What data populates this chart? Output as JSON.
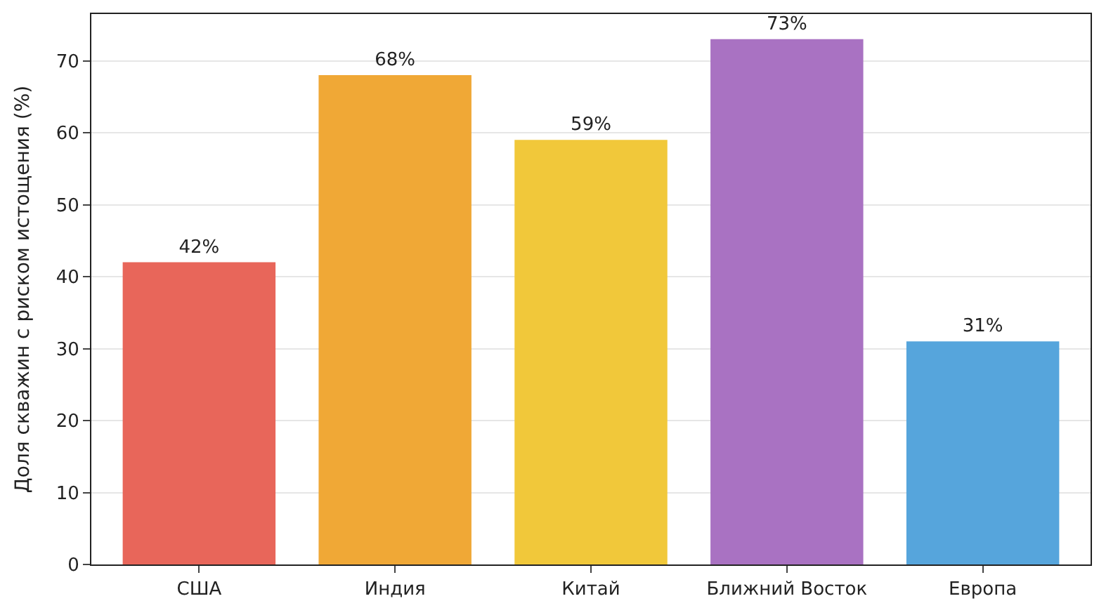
{
  "chart_data": {
    "type": "bar",
    "ylabel": "Доля скважин с риском истощения (%)",
    "categories": [
      "США",
      "Индия",
      "Китай",
      "Ближний Восток",
      "Европа"
    ],
    "values": [
      42,
      68,
      59,
      73,
      31
    ],
    "colors": [
      "#e8665a",
      "#f0a836",
      "#f1c83a",
      "#a972c2",
      "#56a5dc"
    ],
    "value_labels": [
      "42%",
      "68%",
      "59%",
      "73%",
      "31%"
    ],
    "ylim": [
      0,
      76.5
    ],
    "yticks": [
      0,
      10,
      20,
      30,
      40,
      50,
      60,
      70
    ],
    "grid": "y"
  }
}
